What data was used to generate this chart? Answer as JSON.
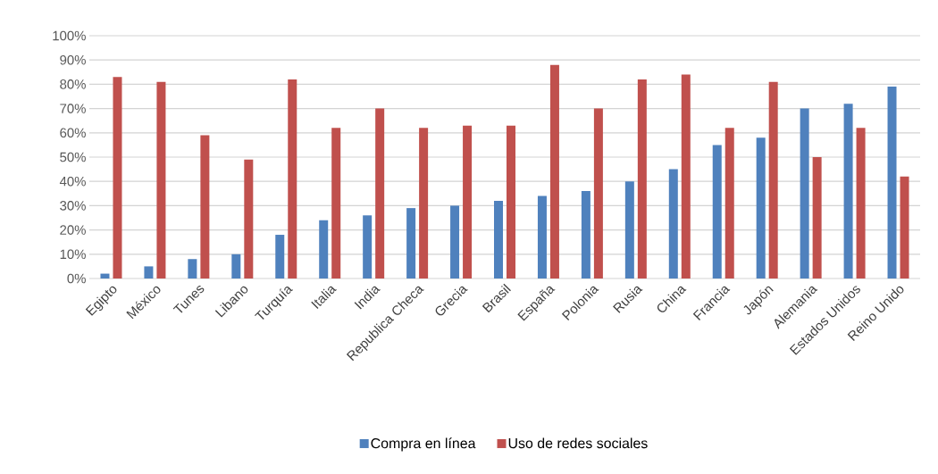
{
  "chart_data": {
    "type": "bar",
    "categories": [
      "Egipto",
      "México",
      "Tunes",
      "Libano",
      "Turquía",
      "Italia",
      "India",
      "Republica Checa",
      "Grecia",
      "Brasil",
      "España",
      "Polonia",
      "Rusia",
      "China",
      "Francia",
      "Japón",
      "Alemania",
      "Estados Unidos",
      "Reino Unido"
    ],
    "series": [
      {
        "name": "Compra en línea",
        "color": "#4f81bd",
        "values": [
          2,
          5,
          8,
          10,
          18,
          24,
          26,
          29,
          30,
          32,
          34,
          36,
          40,
          45,
          55,
          58,
          70,
          72,
          79
        ]
      },
      {
        "name": "Uso de redes sociales",
        "color": "#c0504d",
        "values": [
          83,
          81,
          59,
          49,
          82,
          62,
          70,
          62,
          63,
          63,
          88,
          70,
          82,
          84,
          62,
          81,
          50,
          62,
          42
        ]
      }
    ],
    "ylim": [
      0,
      100
    ],
    "yticks": [
      {
        "value": 0,
        "label": "0%"
      },
      {
        "value": 10,
        "label": "10%"
      },
      {
        "value": 20,
        "label": "20%"
      },
      {
        "value": 30,
        "label": "30%"
      },
      {
        "value": 40,
        "label": "40%"
      },
      {
        "value": 50,
        "label": "50%"
      },
      {
        "value": 60,
        "label": "60%"
      },
      {
        "value": 70,
        "label": "70%"
      },
      {
        "value": 80,
        "label": "80%"
      },
      {
        "value": 90,
        "label": "90%"
      },
      {
        "value": 100,
        "label": "100%"
      }
    ],
    "grid": "y",
    "legend": "bottom"
  }
}
